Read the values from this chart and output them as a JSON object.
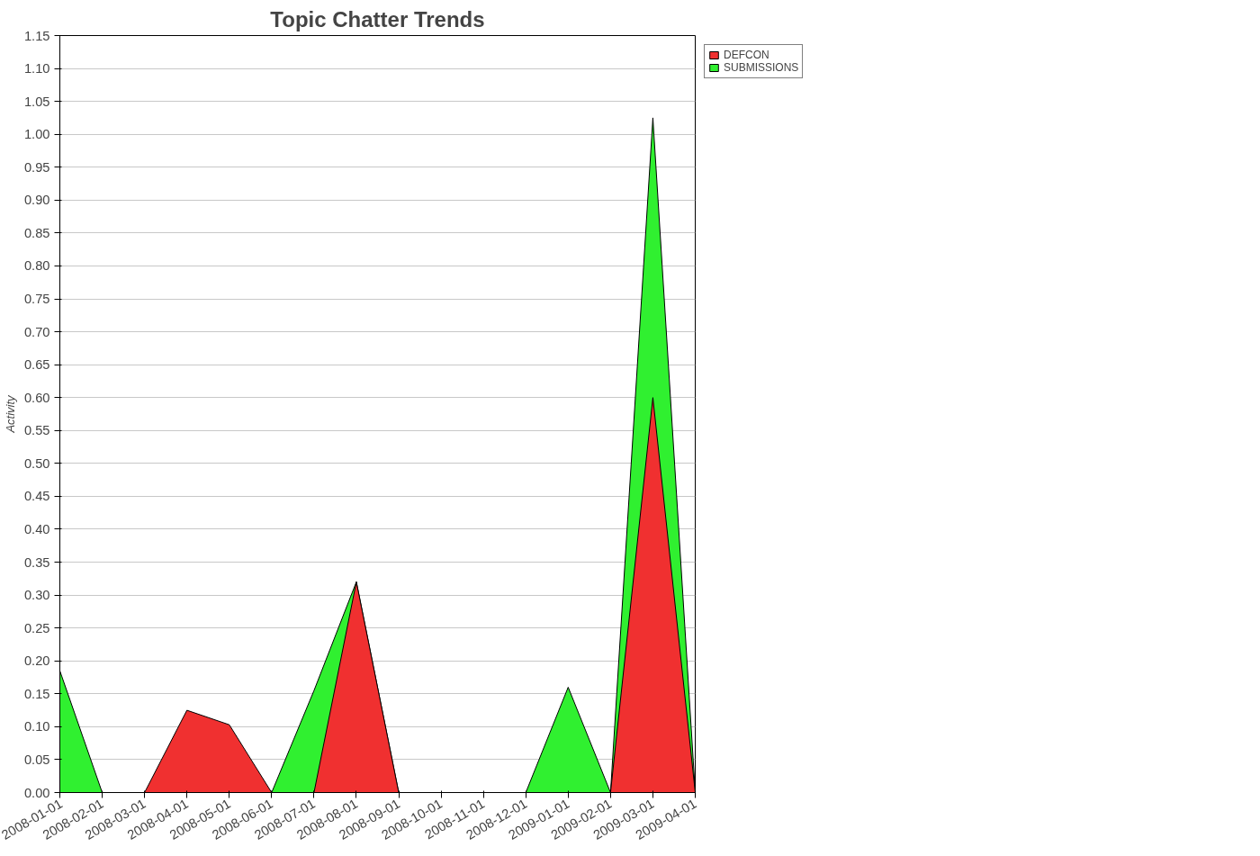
{
  "chart_data": {
    "type": "area",
    "title": "Topic Chatter Trends",
    "ylabel": "Activity",
    "categories": [
      "2008-01-01",
      "2008-02-01",
      "2008-03-01",
      "2008-04-01",
      "2008-05-01",
      "2008-06-01",
      "2008-07-01",
      "2008-08-01",
      "2008-09-01",
      "2008-10-01",
      "2008-11-01",
      "2008-12-01",
      "2009-01-01",
      "2009-02-01",
      "2009-03-01",
      "2009-04-01"
    ],
    "series": [
      {
        "name": "DEFCON",
        "color": "#f03030",
        "values": [
          0,
          0,
          0,
          0.125,
          0.103,
          0,
          0,
          0.32,
          0,
          0,
          0,
          0,
          0,
          0,
          0.6,
          0
        ]
      },
      {
        "name": "SUBMISSIONS",
        "color": "#30f030",
        "values": [
          0.185,
          0,
          0,
          0,
          0,
          0,
          0.155,
          0.32,
          0,
          0,
          0,
          0,
          0.16,
          0,
          1.025,
          0
        ]
      }
    ],
    "ylim": [
      0,
      1.15
    ],
    "yticks": [
      {
        "value": 0,
        "label": "0.00"
      },
      {
        "value": 0.05,
        "label": "0.05"
      },
      {
        "value": 0.1,
        "label": "0.10"
      },
      {
        "value": 0.15,
        "label": "0.15"
      },
      {
        "value": 0.2,
        "label": "0.20"
      },
      {
        "value": 0.25,
        "label": "0.25"
      },
      {
        "value": 0.3,
        "label": "0.30"
      },
      {
        "value": 0.35,
        "label": "0.35"
      },
      {
        "value": 0.4,
        "label": "0.40"
      },
      {
        "value": 0.45,
        "label": "0.45"
      },
      {
        "value": 0.5,
        "label": "0.50"
      },
      {
        "value": 0.55,
        "label": "0.55"
      },
      {
        "value": 0.6,
        "label": "0.60"
      },
      {
        "value": 0.65,
        "label": "0.65"
      },
      {
        "value": 0.7,
        "label": "0.70"
      },
      {
        "value": 0.75,
        "label": "0.75"
      },
      {
        "value": 0.8,
        "label": "0.80"
      },
      {
        "value": 0.85,
        "label": "0.85"
      },
      {
        "value": 0.9,
        "label": "0.90"
      },
      {
        "value": 0.95,
        "label": "0.95"
      },
      {
        "value": 1,
        "label": "1.00"
      },
      {
        "value": 1.05,
        "label": "1.05"
      },
      {
        "value": 1.1,
        "label": "1.10"
      },
      {
        "value": 1.15,
        "label": "1.15"
      }
    ],
    "grid": "y",
    "legend": "top right"
  }
}
